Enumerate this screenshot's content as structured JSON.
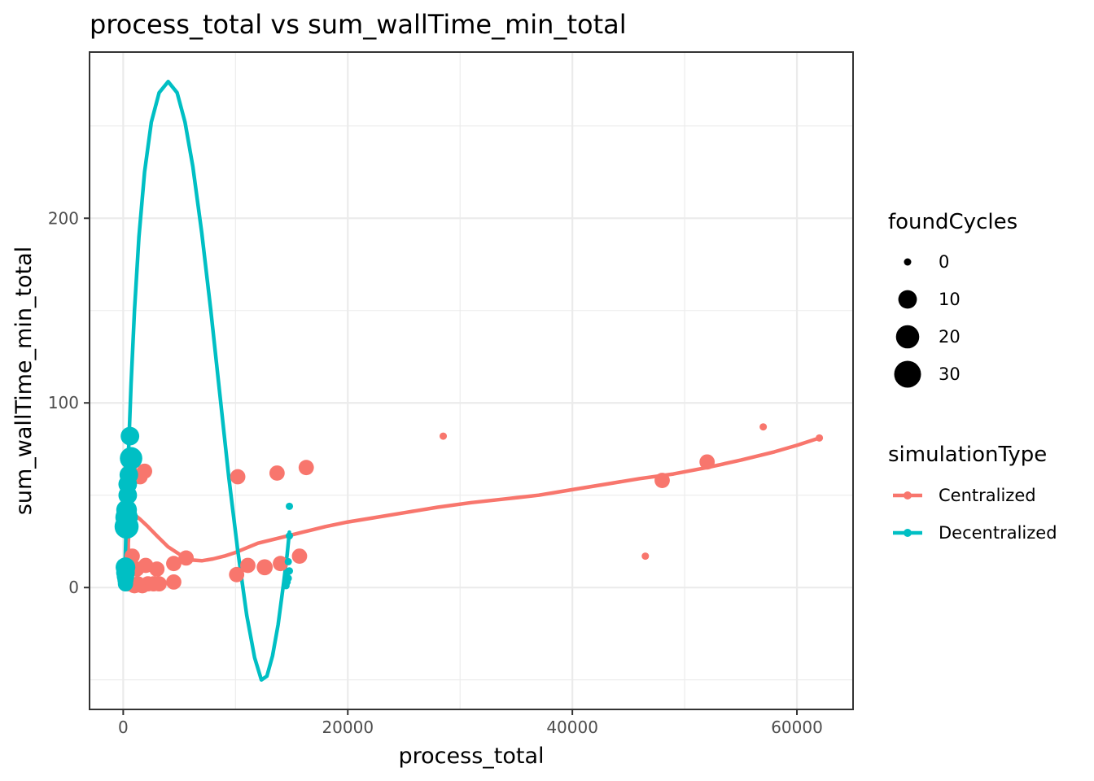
{
  "chart_data": {
    "type": "scatter",
    "title": "process_total  vs  sum_wallTime_min_total",
    "xlabel": "process_total",
    "ylabel": "sum_wallTime_min_total",
    "xlim": [
      -3000,
      65000
    ],
    "ylim": [
      -66,
      290
    ],
    "x_ticks": [
      0,
      20000,
      40000,
      60000
    ],
    "x_tick_labels": [
      "0",
      "20000",
      "40000",
      "60000"
    ],
    "y_ticks": [
      0,
      100,
      200
    ],
    "y_tick_labels": [
      "0",
      "100",
      "200"
    ],
    "grid": true,
    "legend_position": "right",
    "size_legend": {
      "title": "foundCycles",
      "entries": [
        {
          "label": "0",
          "value": 0
        },
        {
          "label": "10",
          "value": 10
        },
        {
          "label": "20",
          "value": 20
        },
        {
          "label": "30",
          "value": 30
        }
      ]
    },
    "color_legend": {
      "title": "simulationType",
      "entries": [
        {
          "label": "Centralized",
          "color": "#F8766D"
        },
        {
          "label": "Decentralized",
          "color": "#00BFC4"
        }
      ]
    },
    "series": [
      {
        "name": "Centralized",
        "color": "#F8766D",
        "points": [
          {
            "x": 62000,
            "y": 81,
            "size": 0
          },
          {
            "x": 57000,
            "y": 87,
            "size": 0
          },
          {
            "x": 52000,
            "y": 68,
            "size": 5
          },
          {
            "x": 48000,
            "y": 58,
            "size": 5
          },
          {
            "x": 46500,
            "y": 17,
            "size": 0
          },
          {
            "x": 28500,
            "y": 82,
            "size": 0
          },
          {
            "x": 16300,
            "y": 65,
            "size": 5
          },
          {
            "x": 15700,
            "y": 17,
            "size": 5
          },
          {
            "x": 14000,
            "y": 13,
            "size": 5
          },
          {
            "x": 13700,
            "y": 62,
            "size": 5
          },
          {
            "x": 12600,
            "y": 11,
            "size": 6
          },
          {
            "x": 11100,
            "y": 12,
            "size": 5
          },
          {
            "x": 10200,
            "y": 60,
            "size": 5
          },
          {
            "x": 10100,
            "y": 7,
            "size": 5
          },
          {
            "x": 5600,
            "y": 16,
            "size": 5
          },
          {
            "x": 4500,
            "y": 13,
            "size": 5
          },
          {
            "x": 4500,
            "y": 3,
            "size": 5
          },
          {
            "x": 3200,
            "y": 2,
            "size": 5
          },
          {
            "x": 3000,
            "y": 10,
            "size": 5
          },
          {
            "x": 2700,
            "y": 2,
            "size": 5
          },
          {
            "x": 2200,
            "y": 2,
            "size": 5
          },
          {
            "x": 2000,
            "y": 12,
            "size": 5
          },
          {
            "x": 1900,
            "y": 63,
            "size": 5
          },
          {
            "x": 1700,
            "y": 1,
            "size": 5
          },
          {
            "x": 1500,
            "y": 60,
            "size": 5
          },
          {
            "x": 1300,
            "y": 2,
            "size": 5
          },
          {
            "x": 1200,
            "y": 10,
            "size": 5
          },
          {
            "x": 1000,
            "y": 1,
            "size": 5
          },
          {
            "x": 800,
            "y": 17,
            "size": 5
          },
          {
            "x": 600,
            "y": 63,
            "size": 5
          },
          {
            "x": 500,
            "y": 2,
            "size": 5
          }
        ],
        "smooth": [
          [
            800,
            4
          ],
          [
            600,
            8
          ],
          [
            500,
            12
          ],
          [
            450,
            18
          ],
          [
            450,
            24
          ],
          [
            500,
            30
          ],
          [
            600,
            35
          ],
          [
            800,
            38
          ],
          [
            1100,
            39
          ],
          [
            1500,
            37
          ],
          [
            2200,
            33
          ],
          [
            3000,
            28
          ],
          [
            4000,
            22
          ],
          [
            5000,
            18
          ],
          [
            6000,
            15
          ],
          [
            7000,
            14.5
          ],
          [
            8000,
            15.5
          ],
          [
            9000,
            17
          ],
          [
            10000,
            19
          ],
          [
            12000,
            24
          ],
          [
            14000,
            27
          ],
          [
            16000,
            30
          ],
          [
            18000,
            33
          ],
          [
            20000,
            35.5
          ],
          [
            22000,
            37.5
          ],
          [
            25000,
            40.5
          ],
          [
            28000,
            43.5
          ],
          [
            31000,
            46
          ],
          [
            34000,
            48
          ],
          [
            37000,
            50
          ],
          [
            40000,
            53
          ],
          [
            43000,
            56
          ],
          [
            46000,
            59
          ],
          [
            49000,
            61.5
          ],
          [
            52000,
            65
          ],
          [
            55000,
            69
          ],
          [
            58000,
            73.5
          ],
          [
            60000,
            77
          ],
          [
            62000,
            81
          ]
        ]
      },
      {
        "name": "Decentralized",
        "color": "#00BFC4",
        "points": [
          {
            "x": 600,
            "y": 82,
            "size": 10
          },
          {
            "x": 700,
            "y": 70,
            "size": 18
          },
          {
            "x": 500,
            "y": 61,
            "size": 10
          },
          {
            "x": 400,
            "y": 56,
            "size": 10
          },
          {
            "x": 400,
            "y": 50,
            "size": 10
          },
          {
            "x": 300,
            "y": 42,
            "size": 14
          },
          {
            "x": 300,
            "y": 38,
            "size": 18
          },
          {
            "x": 300,
            "y": 33,
            "size": 22
          },
          {
            "x": 200,
            "y": 11,
            "size": 12
          },
          {
            "x": 200,
            "y": 8,
            "size": 10
          },
          {
            "x": 200,
            "y": 6,
            "size": 8
          },
          {
            "x": 200,
            "y": 4,
            "size": 6
          },
          {
            "x": 200,
            "y": 2,
            "size": 5
          },
          {
            "x": 14800,
            "y": 44,
            "size": 0
          },
          {
            "x": 14800,
            "y": 28,
            "size": 0
          },
          {
            "x": 14700,
            "y": 14,
            "size": 0
          },
          {
            "x": 14800,
            "y": 9,
            "size": 0
          },
          {
            "x": 14600,
            "y": 8,
            "size": 0
          },
          {
            "x": 14700,
            "y": 5,
            "size": 0
          },
          {
            "x": 14600,
            "y": 3,
            "size": 0
          },
          {
            "x": 14500,
            "y": 1,
            "size": 0
          }
        ],
        "smooth": [
          [
            100,
            0
          ],
          [
            250,
            30
          ],
          [
            450,
            70
          ],
          [
            700,
            110
          ],
          [
            1000,
            150
          ],
          [
            1400,
            190
          ],
          [
            1900,
            225
          ],
          [
            2500,
            252
          ],
          [
            3200,
            268
          ],
          [
            4000,
            274
          ],
          [
            4800,
            268
          ],
          [
            5500,
            252
          ],
          [
            6200,
            228
          ],
          [
            7000,
            192
          ],
          [
            7800,
            150
          ],
          [
            8600,
            105
          ],
          [
            9400,
            60
          ],
          [
            10200,
            20
          ],
          [
            11000,
            -15
          ],
          [
            11700,
            -38
          ],
          [
            12300,
            -50
          ],
          [
            12800,
            -48
          ],
          [
            13300,
            -37
          ],
          [
            13800,
            -20
          ],
          [
            14300,
            3
          ],
          [
            14600,
            18
          ],
          [
            14800,
            30
          ]
        ]
      }
    ]
  }
}
